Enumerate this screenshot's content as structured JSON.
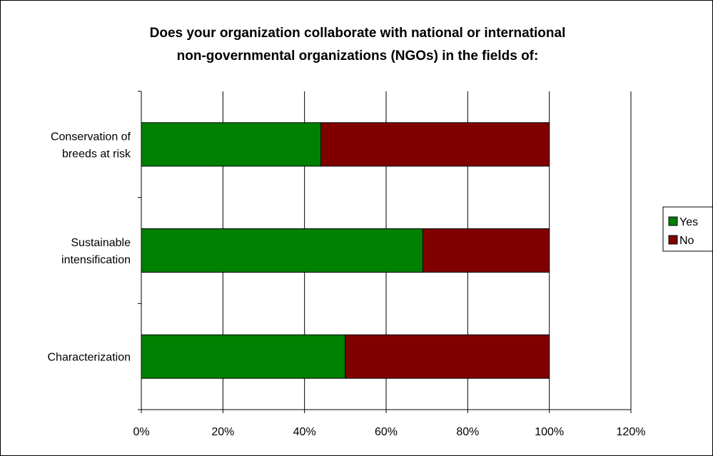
{
  "chart_data": {
    "type": "bar",
    "orientation": "horizontal",
    "stacked": true,
    "title": [
      "Does your organization collaborate with national or international",
      "non-governmental organizations (NGOs) in the fields of:"
    ],
    "categories": [
      "Conservation of breeds at risk",
      "Sustainable intensification",
      "Characterization"
    ],
    "category_label_lines": [
      [
        "Conservation of",
        "breeds at risk"
      ],
      [
        "Sustainable",
        "intensification"
      ],
      [
        "Characterization"
      ]
    ],
    "series": [
      {
        "name": "Yes",
        "color": "#008000",
        "values": [
          0.44,
          0.69,
          0.5
        ]
      },
      {
        "name": "No",
        "color": "#800000",
        "values": [
          0.56,
          0.31,
          0.5
        ]
      }
    ],
    "xlim": [
      0,
      1.2
    ],
    "x_ticks": [
      0,
      0.2,
      0.4,
      0.6,
      0.8,
      1.0,
      1.2
    ],
    "x_tick_labels": [
      "0%",
      "20%",
      "40%",
      "60%",
      "80%",
      "100%",
      "120%"
    ],
    "grid": "vertical major gridlines",
    "legend_position": "right"
  }
}
